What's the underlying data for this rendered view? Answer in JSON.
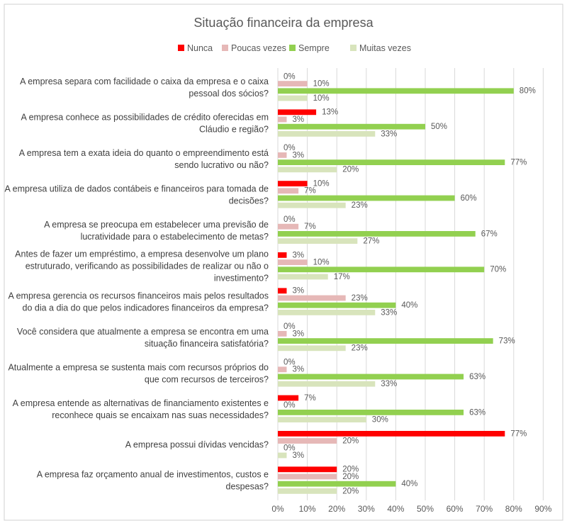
{
  "chart_data": {
    "type": "bar",
    "orientation": "horizontal",
    "title": "Situação financeira da empresa",
    "legend_position": "top",
    "grid": true,
    "xlim": [
      0,
      90
    ],
    "x_ticks": [
      "0%",
      "10%",
      "20%",
      "30%",
      "40%",
      "50%",
      "60%",
      "70%",
      "80%",
      "90%"
    ],
    "categories": [
      [
        "A empresa separa com facilidade o caixa da empresa e o caixa",
        "pessoal dos sócios?"
      ],
      [
        "A empresa conhece as possibilidades de crédito oferecidas em",
        "Cláudio e região?"
      ],
      [
        "A empresa tem a exata ideia do quanto o empreendimento está",
        "sendo lucrativo ou não?"
      ],
      [
        "A empresa utiliza de dados contábeis e financeiros para tomada de",
        "decisões?"
      ],
      [
        "A empresa se preocupa em estabelecer uma previsão de",
        "lucratividade para o estabelecimento de metas?"
      ],
      [
        "Antes de fazer um empréstimo, a empresa desenvolve um plano",
        "estruturado, verificando as possibilidades de realizar ou não o",
        "investimento?"
      ],
      [
        "A empresa gerencia os recursos financeiros mais pelos resultados",
        "do dia a dia do que pelos indicadores financeiros da empresa?"
      ],
      [
        "Você considera que atualmente a empresa se encontra em uma",
        "situação financeira satisfatória?"
      ],
      [
        "Atualmente a empresa se sustenta mais com recursos próprios do",
        "que com recursos de terceiros?"
      ],
      [
        "A empresa entende as alternativas de financiamento existentes e",
        "reconhece quais se encaixam nas suas necessidades?"
      ],
      [
        "A empresa possui dívidas vencidas?"
      ],
      [
        "A empresa faz orçamento anual de investimentos, custos e",
        "despesas?"
      ]
    ],
    "series": [
      {
        "name": "Nunca",
        "color": "#ff0000",
        "values": [
          0,
          13,
          0,
          10,
          0,
          3,
          3,
          0,
          0,
          7,
          77,
          20
        ]
      },
      {
        "name": "Poucas vezes",
        "color": "#e6b8b7",
        "values": [
          10,
          3,
          3,
          7,
          7,
          10,
          23,
          3,
          3,
          0,
          20,
          20
        ]
      },
      {
        "name": "Sempre",
        "color": "#92d050",
        "values": [
          80,
          50,
          77,
          60,
          67,
          70,
          40,
          73,
          63,
          63,
          0,
          40
        ]
      },
      {
        "name": "Muitas vezes",
        "color": "#d8e4bc",
        "values": [
          10,
          33,
          20,
          23,
          27,
          17,
          33,
          23,
          33,
          30,
          3,
          20
        ]
      }
    ],
    "value_suffix": "%"
  }
}
